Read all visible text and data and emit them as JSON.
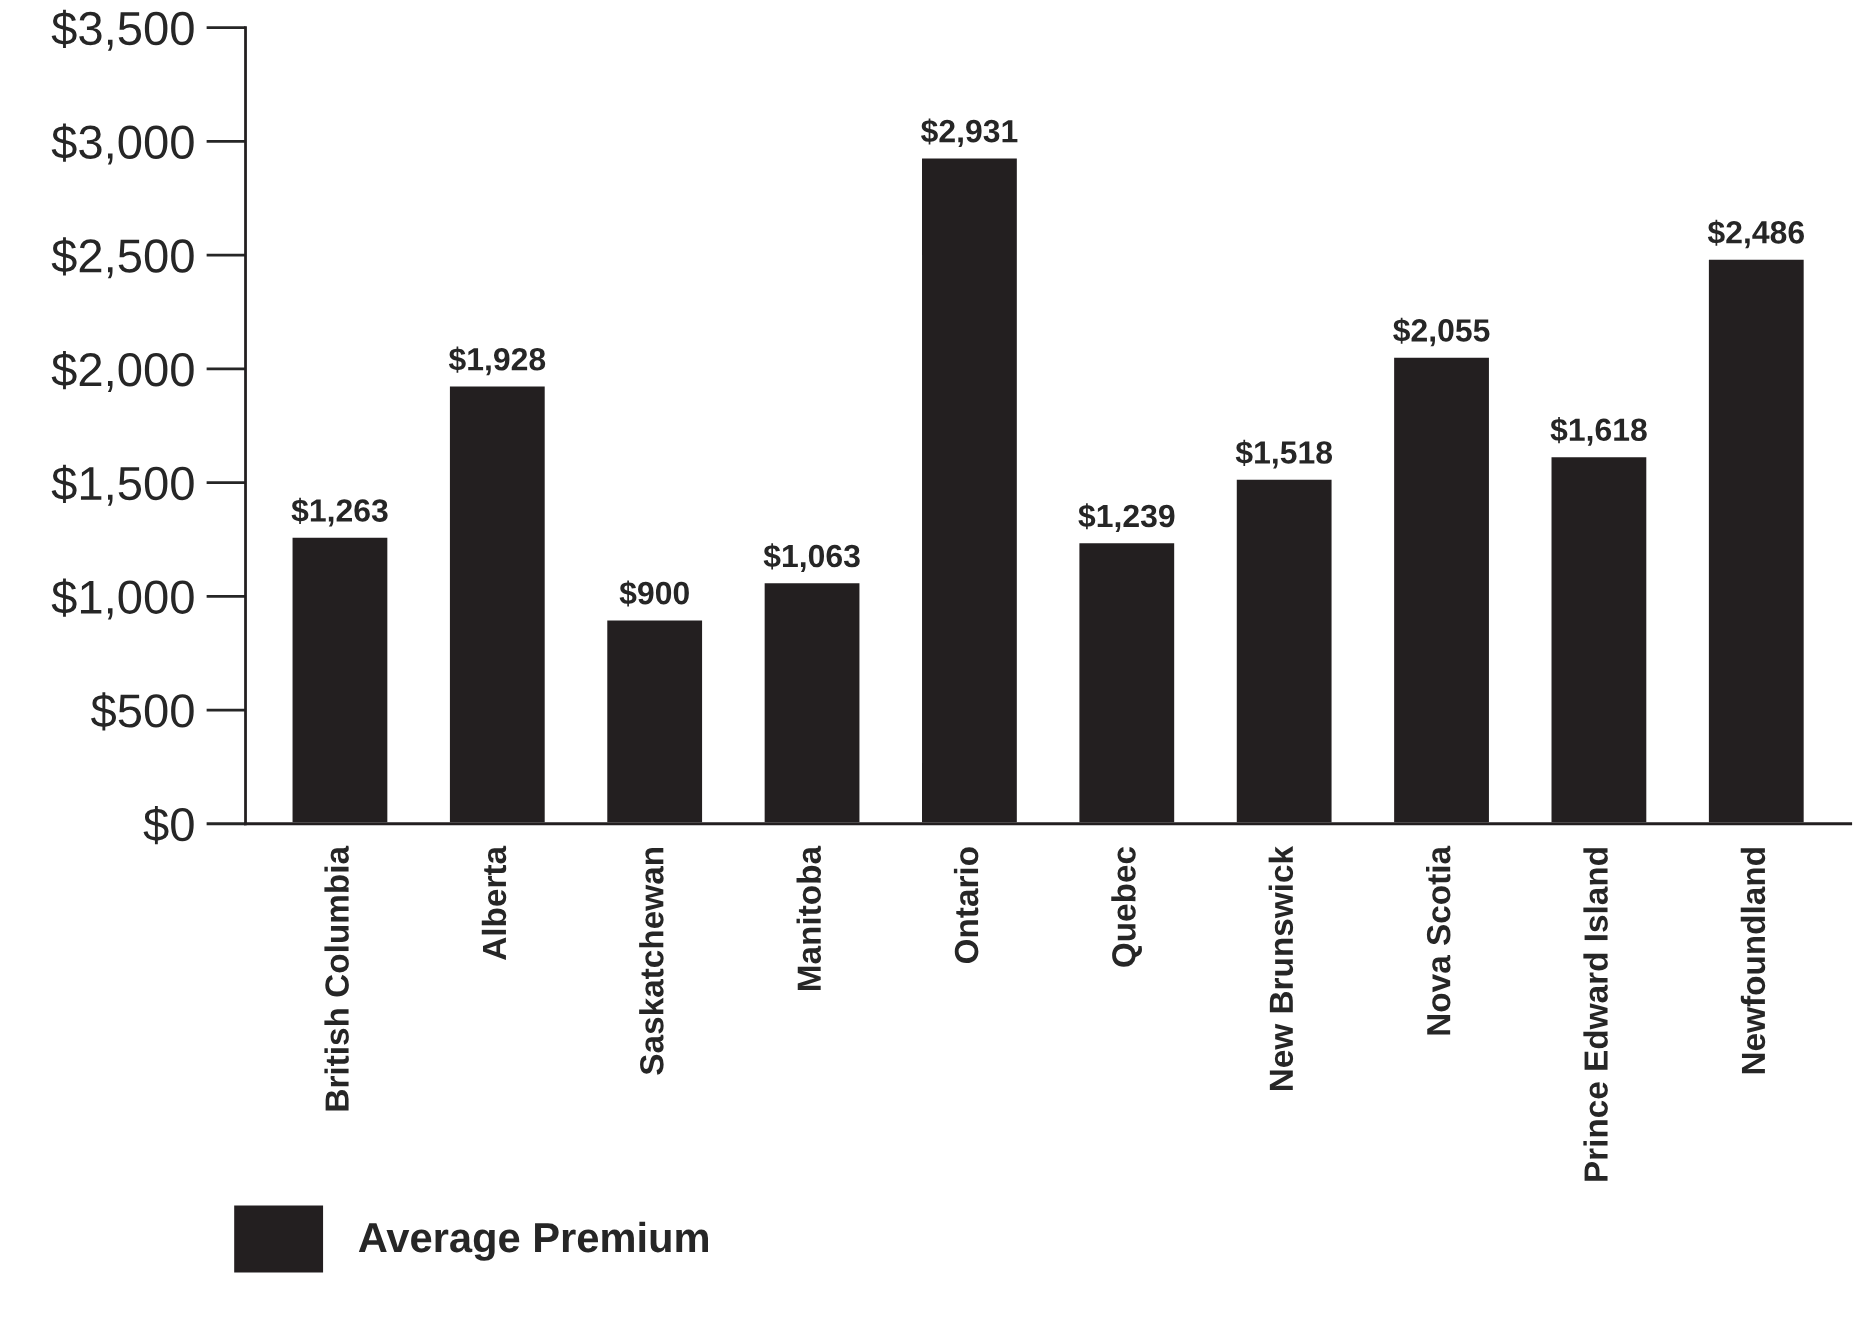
{
  "chart_data": {
    "type": "bar",
    "categories": [
      "British Columbia",
      "Alberta",
      "Saskatchewan",
      "Manitoba",
      "Ontario",
      "Quebec",
      "New Brunswick",
      "Nova Scotia",
      "Prince Edward Island",
      "Newfoundland"
    ],
    "series": [
      {
        "name": "Average Premium",
        "color": "#231f20",
        "values": [
          1263,
          1928,
          900,
          1063,
          2931,
          1239,
          1518,
          2055,
          1618,
          2486
        ]
      }
    ],
    "value_labels": [
      "$1,263",
      "$1,928",
      "$900",
      "$1,063",
      "$2,931",
      "$1,239",
      "$1,518",
      "$2,055",
      "$1,618",
      "$2,486"
    ],
    "ylim": [
      0,
      3500
    ],
    "yticks": [
      {
        "value": 0,
        "label": "$0"
      },
      {
        "value": 500,
        "label": "$500"
      },
      {
        "value": 1000,
        "label": "$1,000"
      },
      {
        "value": 1500,
        "label": "$1,500"
      },
      {
        "value": 2000,
        "label": "$2,000"
      },
      {
        "value": 2500,
        "label": "$2,500"
      },
      {
        "value": 3000,
        "label": "$3,000"
      },
      {
        "value": 3500,
        "label": "$3,500"
      }
    ],
    "grid": false,
    "legend": "bottom"
  }
}
